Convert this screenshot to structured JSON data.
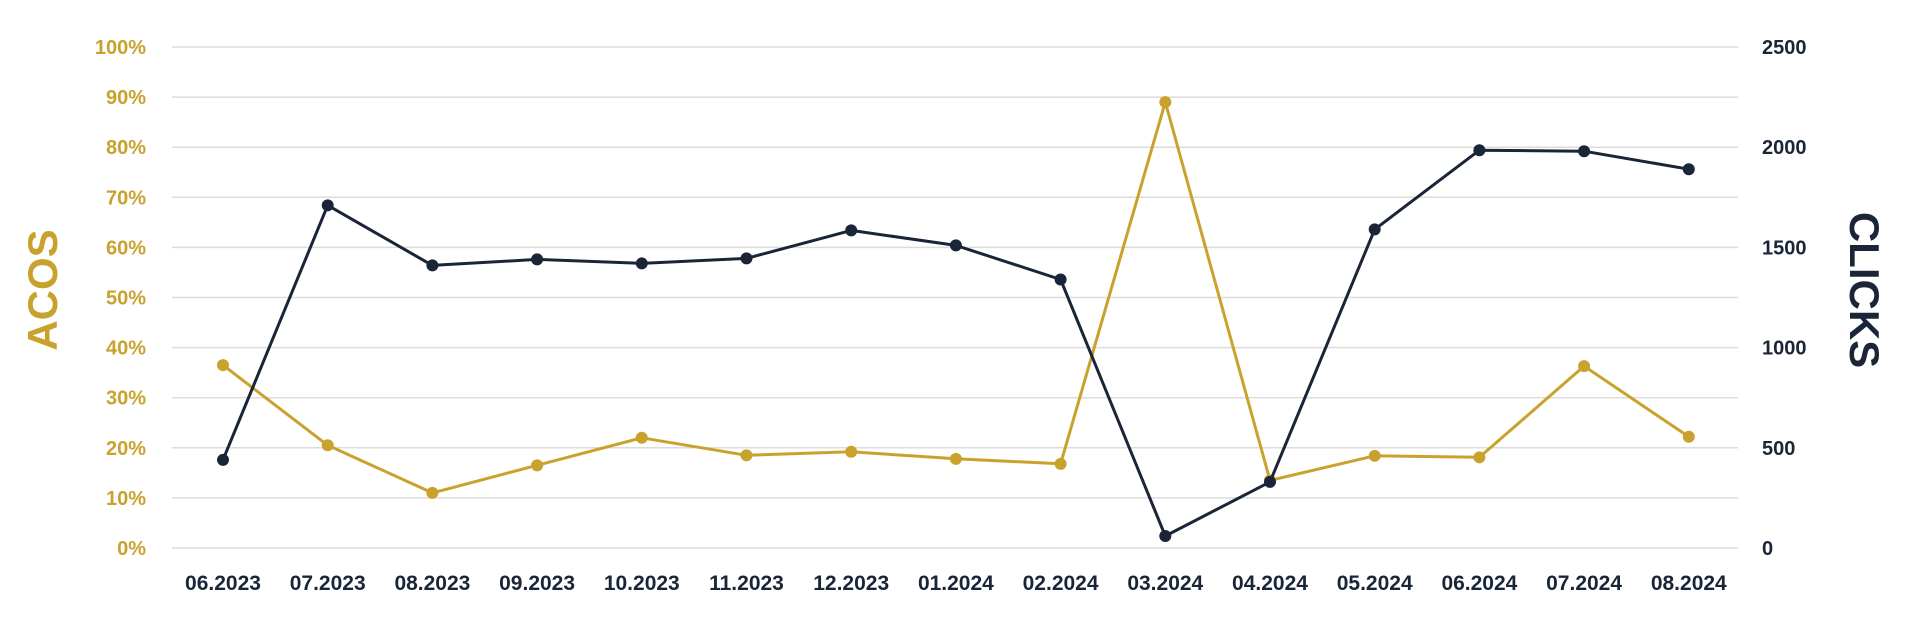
{
  "chart_data": {
    "type": "line",
    "categories": [
      "06.2023",
      "07.2023",
      "08.2023",
      "09.2023",
      "10.2023",
      "11.2023",
      "12.2023",
      "01.2024",
      "02.2024",
      "03.2024",
      "04.2024",
      "05.2024",
      "06.2024",
      "07.2024",
      "08.2024"
    ],
    "series": [
      {
        "name": "ACOS",
        "axis": "left",
        "color": "#c9a22e",
        "values": [
          36.5,
          20.5,
          11,
          16.5,
          22,
          18.5,
          19.2,
          17.8,
          16.8,
          89,
          13.5,
          18.4,
          18.1,
          36.3,
          22.2
        ]
      },
      {
        "name": "CLICKS",
        "axis": "right",
        "color": "#1b2538",
        "values": [
          440,
          1710,
          1410,
          1440,
          1420,
          1445,
          1585,
          1510,
          1340,
          60,
          330,
          1590,
          1985,
          1980,
          1890
        ]
      }
    ],
    "ylabel_left": "ACOS",
    "ylabel_right": "CLICKS",
    "ylim_left": [
      0,
      100
    ],
    "ylim_right": [
      0,
      2500
    ],
    "yticks_left": [
      "0%",
      "10%",
      "20%",
      "30%",
      "40%",
      "50%",
      "60%",
      "70%",
      "80%",
      "90%",
      "100%"
    ],
    "yticks_right": [
      "0",
      "500",
      "1000",
      "1500",
      "2000",
      "2500"
    ],
    "grid": true,
    "legend": "none"
  }
}
